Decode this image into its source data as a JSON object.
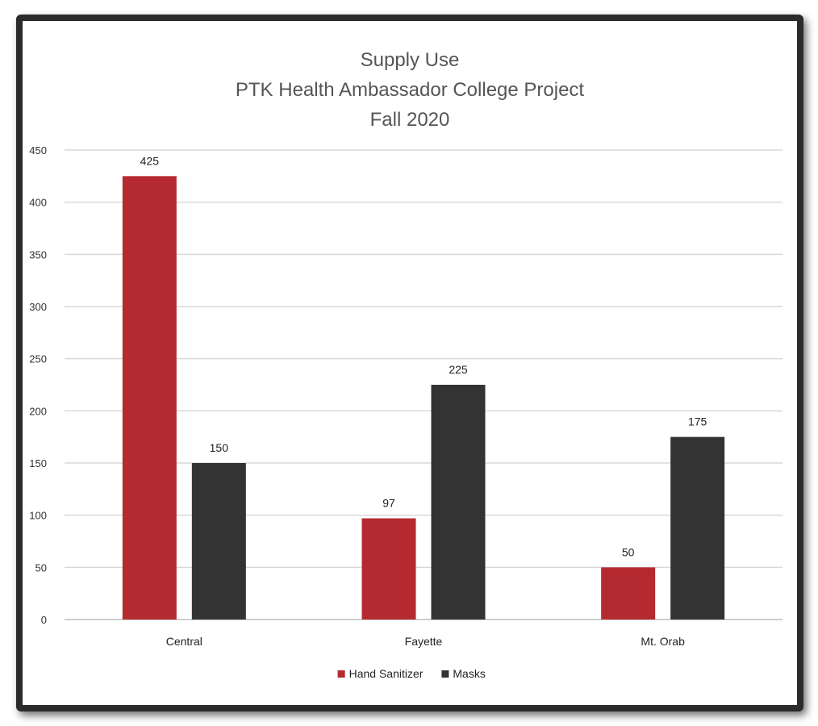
{
  "chart_data": {
    "type": "bar",
    "title": [
      "Supply Use",
      "PTK Health Ambassador College Project",
      "Fall 2020"
    ],
    "categories": [
      "Central",
      "Fayette",
      "Mt. Orab"
    ],
    "series": [
      {
        "name": "Hand Sanitizer",
        "values": [
          425,
          97,
          50
        ],
        "color": "#b52a30"
      },
      {
        "name": "Masks",
        "values": [
          150,
          225,
          175
        ],
        "color": "#333333"
      }
    ],
    "ylim": [
      0,
      450
    ],
    "yticks": [
      0,
      50,
      100,
      150,
      200,
      250,
      300,
      350,
      400,
      450
    ],
    "grid": true,
    "legend": "bottom"
  }
}
